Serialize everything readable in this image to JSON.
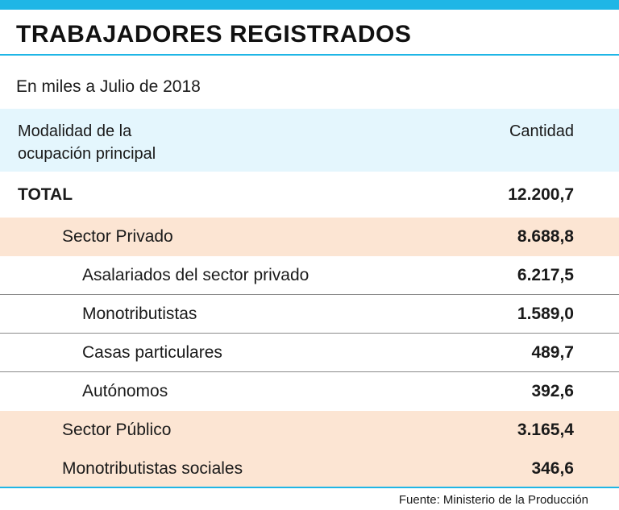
{
  "header": {
    "title": "TRABAJADORES REGISTRADOS",
    "subtitle": "En miles a Julio de 2018"
  },
  "table": {
    "column_label_line1": "Modalidad de la",
    "column_label_line2": "ocupación principal",
    "column_value": "Cantidad"
  },
  "chart_data": {
    "type": "table",
    "title": "TRABAJADORES REGISTRADOS",
    "subtitle": "En miles a Julio de 2018",
    "columns": [
      "Modalidad de la ocupación principal",
      "Cantidad"
    ],
    "rows": [
      {
        "label": "TOTAL",
        "value": "12.200,7",
        "level": 0
      },
      {
        "label": "Sector Privado",
        "value": "8.688,8",
        "level": 1
      },
      {
        "label": "Asalariados del sector privado",
        "value": "6.217,5",
        "level": 2
      },
      {
        "label": "Monotributistas",
        "value": "1.589,0",
        "level": 2
      },
      {
        "label": "Casas particulares",
        "value": "489,7",
        "level": 2
      },
      {
        "label": "Autónomos",
        "value": "392,6",
        "level": 2
      },
      {
        "label": "Sector Público",
        "value": "3.165,4",
        "level": 1
      },
      {
        "label": "Monotributistas sociales",
        "value": "346,6",
        "level": 1
      }
    ],
    "source": "Fuente: Ministerio de la Producción"
  },
  "footer": {
    "source": "Fuente: Ministerio de la Producción"
  }
}
